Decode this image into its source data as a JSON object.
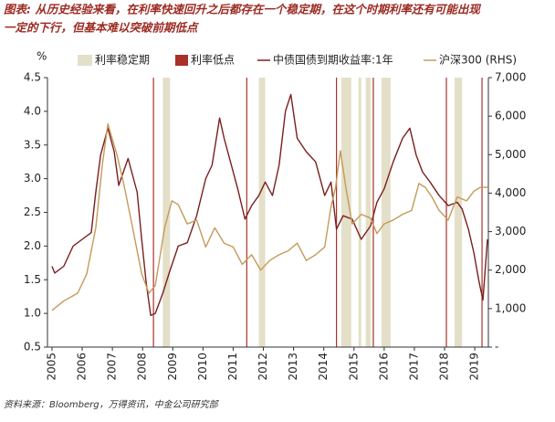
{
  "chart_data": {
    "type": "line",
    "title": [
      "图表: 从历史经验来看，在利率快速回升之后都存在一个稳定期，在这个时期利率还有可能出现",
      "一定的下行，但基本难以突破前期低点"
    ],
    "y_label": "%",
    "source": "资料来源：Bloomberg，万得资讯，中金公司研究部",
    "xlim": [
      2004.85,
      2019.45
    ],
    "xticks": [
      2005,
      2006,
      2007,
      2008,
      2009,
      2010,
      2011,
      2012,
      2013,
      2014,
      2015,
      2016,
      2017,
      2018,
      2019
    ],
    "ylim": [
      0.5,
      4.5
    ],
    "yticks": [
      {
        "value": 0.5,
        "label": "0.5"
      },
      {
        "value": 1,
        "label": "1.0"
      },
      {
        "value": 1.5,
        "label": "1.5"
      },
      {
        "value": 2,
        "label": "2.0"
      },
      {
        "value": 2.5,
        "label": "2.5"
      },
      {
        "value": 3,
        "label": "3.0"
      },
      {
        "value": 3.5,
        "label": "3.5"
      },
      {
        "value": 4,
        "label": "4.0"
      },
      {
        "value": 4.5,
        "label": "4.5"
      }
    ],
    "y2lim": [
      0,
      7000
    ],
    "y2ticks": [
      {
        "value": 0,
        "label": "-"
      },
      {
        "value": 1000,
        "label": "1,000"
      },
      {
        "value": 2000,
        "label": "2,000"
      },
      {
        "value": 3000,
        "label": "3,000"
      },
      {
        "value": 4000,
        "label": "4,000"
      },
      {
        "value": 5000,
        "label": "5,000"
      },
      {
        "value": 6000,
        "label": "6,000"
      },
      {
        "value": 7000,
        "label": "7,000"
      }
    ],
    "shaded_periods": {
      "name": "利率稳定期",
      "color": "#e4dfc8",
      "ranges": [
        [
          2008.67,
          2008.91
        ],
        [
          2011.85,
          2012.06
        ],
        [
          2014.58,
          2014.91
        ],
        [
          2015.15,
          2015.24
        ],
        [
          2015.39,
          2015.55
        ],
        [
          2015.91,
          2016.21
        ],
        [
          2018.33,
          2018.58
        ]
      ]
    },
    "rate_lows": {
      "name": "利率低点",
      "color": "#a83228",
      "x": [
        2008.36,
        2011.45,
        2014.42,
        2015.64,
        2018.06,
        2019.24
      ]
    },
    "series": [
      {
        "name": "中债国债到期收益率:1年",
        "color": "#7a1f1f",
        "axis": "y",
        "x": [
          2005.0,
          2005.09,
          2005.39,
          2005.7,
          2006.0,
          2006.3,
          2006.45,
          2006.61,
          2006.85,
          2007.06,
          2007.21,
          2007.52,
          2007.82,
          2007.97,
          2008.12,
          2008.27,
          2008.42,
          2008.67,
          2008.88,
          2009.18,
          2009.48,
          2009.79,
          2010.09,
          2010.3,
          2010.55,
          2010.7,
          2010.91,
          2011.15,
          2011.39,
          2011.61,
          2011.85,
          2012.06,
          2012.3,
          2012.52,
          2012.73,
          2012.91,
          2013.12,
          2013.42,
          2013.73,
          2014.03,
          2014.24,
          2014.42,
          2014.64,
          2014.94,
          2015.24,
          2015.55,
          2015.76,
          2016.0,
          2016.3,
          2016.61,
          2016.85,
          2017.06,
          2017.27,
          2017.52,
          2017.82,
          2018.12,
          2018.42,
          2018.58,
          2018.79,
          2018.97,
          2019.15,
          2019.27,
          2019.42
        ],
        "values": [
          1.7,
          1.6,
          1.7,
          2.0,
          2.1,
          2.2,
          2.8,
          3.35,
          3.75,
          3.4,
          2.9,
          3.3,
          2.8,
          2.1,
          1.45,
          0.97,
          1.0,
          1.3,
          1.6,
          2.0,
          2.05,
          2.45,
          3.0,
          3.2,
          3.9,
          3.6,
          3.25,
          2.85,
          2.4,
          2.6,
          2.75,
          2.95,
          2.75,
          3.2,
          4.0,
          4.25,
          3.6,
          3.4,
          3.25,
          2.75,
          2.95,
          2.25,
          2.45,
          2.4,
          2.1,
          2.3,
          2.65,
          2.85,
          3.25,
          3.6,
          3.75,
          3.35,
          3.1,
          2.95,
          2.75,
          2.6,
          2.65,
          2.55,
          2.25,
          1.9,
          1.45,
          1.2,
          2.1
        ]
      },
      {
        "name": "沪深300 (RHS)",
        "color": "#c49a5a",
        "axis": "y2",
        "x": [
          2005.0,
          2005.39,
          2005.85,
          2006.15,
          2006.45,
          2006.67,
          2006.85,
          2007.0,
          2007.15,
          2007.36,
          2007.67,
          2007.97,
          2008.21,
          2008.42,
          2008.73,
          2008.97,
          2009.18,
          2009.48,
          2009.79,
          2010.09,
          2010.39,
          2010.7,
          2011.0,
          2011.3,
          2011.61,
          2011.91,
          2012.21,
          2012.52,
          2012.82,
          2013.12,
          2013.42,
          2013.73,
          2014.03,
          2014.24,
          2014.39,
          2014.55,
          2014.73,
          2014.94,
          2015.24,
          2015.55,
          2015.76,
          2016.0,
          2016.3,
          2016.61,
          2016.91,
          2017.15,
          2017.36,
          2017.58,
          2017.82,
          2018.12,
          2018.42,
          2018.73,
          2018.97,
          2019.18,
          2019.42
        ],
        "values": [
          950,
          1200,
          1400,
          1900,
          3100,
          4750,
          5800,
          5400,
          5000,
          4300,
          3100,
          1900,
          1400,
          1600,
          3100,
          3800,
          3700,
          3200,
          3300,
          2600,
          3100,
          2700,
          2600,
          2150,
          2400,
          2000,
          2250,
          2400,
          2500,
          2700,
          2250,
          2400,
          2600,
          3650,
          4150,
          5100,
          4150,
          3200,
          3450,
          3350,
          2950,
          3200,
          3300,
          3450,
          3550,
          4250,
          4150,
          3900,
          3550,
          3300,
          3900,
          3800,
          4050,
          4150,
          4150
        ]
      }
    ]
  }
}
